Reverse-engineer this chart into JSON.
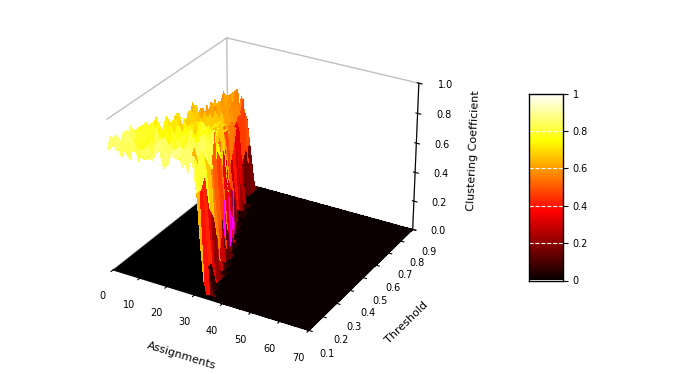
{
  "xlabel": "Assignments",
  "ylabel": "Threshold",
  "zlabel": "Clustering Coefficient",
  "x_ticks": [
    0,
    10,
    20,
    30,
    40,
    50,
    60,
    70
  ],
  "y_ticks": [
    0.1,
    0.2,
    0.3,
    0.4,
    0.5,
    0.6,
    0.7,
    0.8,
    0.9
  ],
  "z_ticks": [
    0,
    0.2,
    0.4,
    0.6,
    0.8,
    1.0
  ],
  "colorbar_ticks": [
    0,
    0.2,
    0.4,
    0.6,
    0.8,
    1.0
  ],
  "elev": 28,
  "azim": -60,
  "seed": 10
}
